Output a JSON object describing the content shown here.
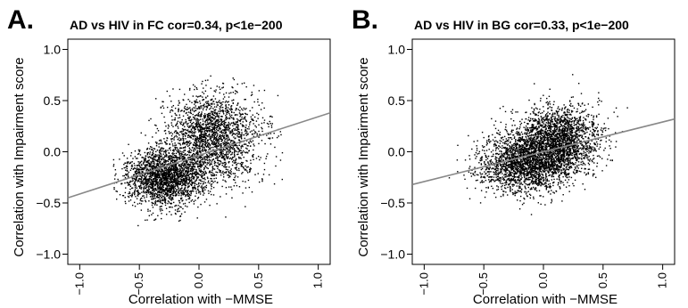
{
  "chart_data": [
    {
      "type": "scatter",
      "panel_label": "A.",
      "title": "AD vs HIV in FC cor=0.34, p<1e−200",
      "xlabel": "Correlation with −MMSE",
      "ylabel": "Correlation with Impairment score",
      "xlim": [
        -1.1,
        1.1
      ],
      "ylim": [
        -1.1,
        1.1
      ],
      "xticks": [
        "−1.0",
        "−0.5",
        "0.0",
        "0.5",
        "1.0"
      ],
      "yticks": [
        "1.0",
        "0.5",
        "0.0",
        "−0.5",
        "−1.0"
      ],
      "fit_line": {
        "x": [
          -1.1,
          1.1
        ],
        "y": [
          -0.45,
          0.38
        ]
      },
      "cloud": {
        "cor": 0.34,
        "x_range": [
          -0.72,
          0.7
        ],
        "y_range": [
          -0.8,
          0.75
        ],
        "clusters": [
          {
            "mx": -0.28,
            "my": -0.25,
            "sx": 0.17,
            "sy": 0.14,
            "weight": 0.5
          },
          {
            "mx": 0.12,
            "my": 0.15,
            "sx": 0.2,
            "sy": 0.22,
            "weight": 0.5
          }
        ],
        "n": 4200
      },
      "grid": false
    },
    {
      "type": "scatter",
      "panel_label": "B.",
      "title": "AD vs HIV in BG cor=0.33, p<1e−200",
      "xlabel": "Correlation with −MMSE",
      "ylabel": "Correlation with Impairment score",
      "xlim": [
        -1.1,
        1.1
      ],
      "ylim": [
        -1.1,
        1.1
      ],
      "xticks": [
        "−1.0",
        "−0.5",
        "0.0",
        "0.5",
        "1.0"
      ],
      "yticks": [
        "1.0",
        "0.5",
        "0.0",
        "−0.5",
        "−1.0"
      ],
      "fit_line": {
        "x": [
          -1.1,
          1.1
        ],
        "y": [
          -0.32,
          0.32
        ]
      },
      "cloud": {
        "cor": 0.33,
        "x_range": [
          -0.82,
          0.72
        ],
        "y_range": [
          -0.78,
          0.85
        ],
        "clusters": [
          {
            "mx": -0.15,
            "my": -0.12,
            "sx": 0.19,
            "sy": 0.14,
            "weight": 0.5
          },
          {
            "mx": 0.12,
            "my": 0.12,
            "sx": 0.18,
            "sy": 0.16,
            "weight": 0.5
          }
        ],
        "n": 4200
      },
      "grid": false
    }
  ]
}
